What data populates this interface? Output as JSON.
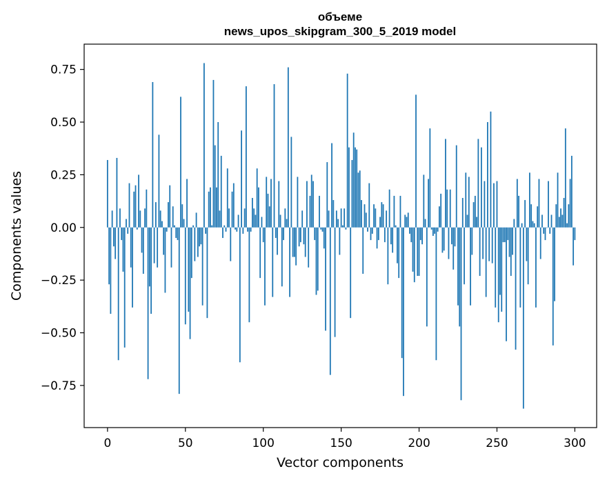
{
  "chart_data": {
    "type": "bar",
    "title": [
      "объеме",
      "news_upos_skipgram_300_5_2019 model"
    ],
    "xlabel": "Vector components",
    "ylabel": "Components values",
    "xlim": [
      -15,
      314
    ],
    "ylim": [
      -0.95,
      0.87
    ],
    "xticks": [
      0,
      50,
      100,
      150,
      200,
      250,
      300
    ],
    "xtick_labels": [
      "0",
      "50",
      "100",
      "150",
      "200",
      "250",
      "300"
    ],
    "yticks": [
      0.75,
      0.5,
      0.25,
      0.0,
      -0.25,
      -0.5,
      -0.75
    ],
    "ytick_labels": [
      "0.75",
      "0.50",
      "0.25",
      "0.00",
      "−0.25",
      "−0.50",
      "−0.75"
    ],
    "grid": false,
    "x_start": 0,
    "values": [
      0.32,
      -0.27,
      -0.41,
      0.08,
      -0.09,
      -0.15,
      0.33,
      -0.63,
      0.09,
      -0.06,
      -0.21,
      -0.57,
      0.04,
      -0.03,
      0.21,
      -0.19,
      -0.38,
      0.17,
      0.2,
      -0.01,
      0.25,
      0.08,
      -0.12,
      -0.22,
      0.09,
      0.18,
      -0.72,
      -0.28,
      -0.41,
      0.69,
      -0.17,
      0.12,
      -0.19,
      0.44,
      0.08,
      0.03,
      -0.13,
      -0.31,
      -0.02,
      0.12,
      0.2,
      -0.19,
      0.1,
      0.01,
      -0.05,
      -0.06,
      -0.79,
      0.62,
      0.11,
      0.04,
      -0.46,
      0.23,
      -0.4,
      -0.53,
      -0.24,
      0.01,
      -0.16,
      0.07,
      -0.14,
      -0.09,
      -0.08,
      -0.37,
      0.78,
      -0.03,
      -0.43,
      0.17,
      0.19,
      0.01,
      0.7,
      0.39,
      0.19,
      0.5,
      0.08,
      0.34,
      -0.05,
      0.01,
      -0.02,
      0.28,
      0.09,
      -0.16,
      0.17,
      0.21,
      -0.01,
      -0.02,
      0.06,
      -0.64,
      0.46,
      -0.03,
      0.09,
      0.67,
      -0.02,
      -0.45,
      -0.02,
      0.14,
      0.09,
      0.06,
      0.28,
      0.19,
      -0.24,
      0.05,
      -0.07,
      -0.37,
      0.24,
      0.16,
      0.1,
      0.23,
      -0.33,
      0.68,
      -0.05,
      -0.13,
      0.22,
      0.06,
      -0.28,
      -0.06,
      0.09,
      0.04,
      0.76,
      -0.33,
      0.43,
      -0.14,
      -0.14,
      -0.18,
      0.24,
      -0.09,
      -0.07,
      0.08,
      -0.08,
      -0.14,
      0.22,
      -0.19,
      0.15,
      0.25,
      0.22,
      -0.06,
      -0.32,
      -0.3,
      0.15,
      -0.01,
      -0.02,
      -0.1,
      -0.49,
      0.31,
      0.08,
      -0.7,
      0.4,
      0.13,
      -0.52,
      0.08,
      0.04,
      -0.13,
      0.09,
      0.01,
      0.09,
      -0.01,
      0.73,
      0.38,
      -0.43,
      0.32,
      0.45,
      0.38,
      0.37,
      0.26,
      0.27,
      0.13,
      -0.22,
      0.11,
      0.07,
      -0.02,
      0.21,
      -0.06,
      -0.03,
      0.11,
      0.09,
      -0.1,
      -0.06,
      0.05,
      0.12,
      0.11,
      -0.07,
      0.08,
      -0.27,
      0.18,
      -0.08,
      -0.12,
      0.15,
      0.01,
      -0.17,
      -0.24,
      0.15,
      -0.62,
      -0.8,
      0.06,
      0.05,
      0.07,
      -0.03,
      -0.07,
      -0.21,
      -0.26,
      0.63,
      -0.23,
      -0.23,
      -0.06,
      -0.08,
      0.25,
      0.04,
      -0.47,
      0.23,
      0.47,
      -0.01,
      -0.04,
      -0.03,
      -0.63,
      -0.02,
      0.1,
      0.16,
      -0.12,
      -0.11,
      0.42,
      0.18,
      -0.15,
      0.18,
      -0.08,
      -0.2,
      -0.09,
      0.39,
      -0.37,
      -0.47,
      -0.82,
      0.14,
      -0.27,
      0.26,
      0.06,
      0.24,
      -0.37,
      -0.13,
      0.12,
      0.15,
      0.05,
      0.42,
      -0.23,
      0.38,
      -0.15,
      0.22,
      -0.33,
      0.5,
      -0.16,
      0.55,
      -0.17,
      0.21,
      -0.38,
      0.22,
      -0.45,
      -0.32,
      -0.4,
      -0.07,
      -0.07,
      -0.54,
      -0.06,
      -0.14,
      -0.23,
      -0.13,
      0.04,
      -0.58,
      0.23,
      0.15,
      -0.38,
      0.02,
      -0.86,
      0.13,
      -0.16,
      -0.27,
      0.26,
      0.11,
      0.03,
      0.02,
      -0.38,
      0.1,
      0.23,
      -0.15,
      0.06,
      -0.03,
      -0.06,
      0.0,
      0.22,
      -0.03,
      0.06,
      -0.56,
      -0.35,
      0.11,
      0.26,
      0.05,
      0.09,
      0.06,
      0.14,
      0.47,
      0.02,
      0.11,
      0.23,
      0.34,
      -0.18,
      -0.06
    ]
  }
}
